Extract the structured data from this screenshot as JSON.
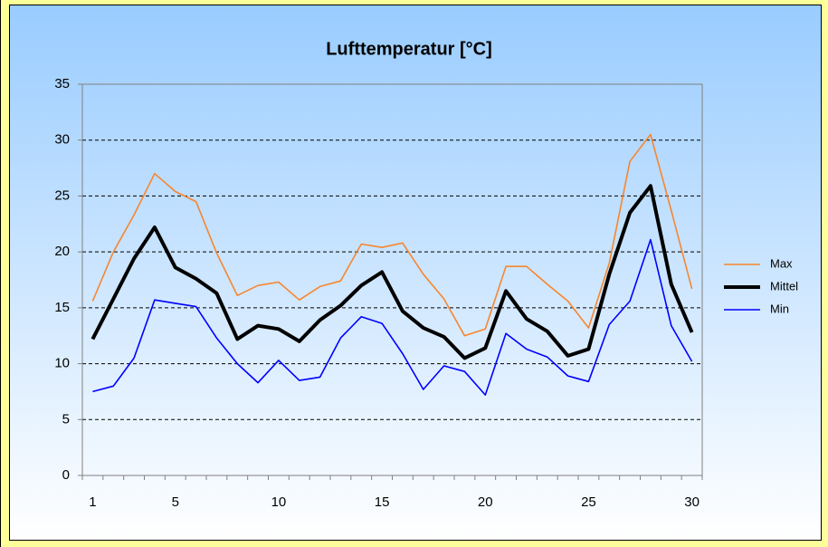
{
  "chart_data": {
    "type": "line",
    "title": "Lufttemperatur [°C]",
    "categories": [
      "1",
      null,
      null,
      null,
      "5",
      null,
      null,
      null,
      null,
      "10",
      null,
      null,
      null,
      null,
      "15",
      null,
      null,
      null,
      null,
      "20",
      null,
      null,
      null,
      null,
      "25",
      null,
      null,
      null,
      null,
      "30"
    ],
    "series": [
      {
        "name": "Max",
        "color": "#f7862f",
        "values": [
          15.6,
          20.0,
          23.3,
          27.0,
          25.4,
          24.5,
          19.9,
          16.1,
          17.0,
          17.3,
          15.7,
          16.9,
          17.4,
          20.7,
          20.4,
          20.8,
          18.0,
          15.8,
          12.5,
          13.1,
          18.7,
          18.7,
          17.1,
          15.6,
          13.2,
          19.0,
          28.1,
          30.5,
          23.7,
          16.7
        ]
      },
      {
        "name": "Mittel",
        "color": "#000000",
        "values": [
          12.2,
          15.8,
          19.4,
          22.2,
          18.6,
          17.6,
          16.3,
          12.2,
          13.4,
          13.1,
          12.0,
          13.9,
          15.2,
          17.0,
          18.2,
          14.7,
          13.2,
          12.4,
          10.5,
          11.4,
          16.5,
          14.0,
          12.9,
          10.7,
          11.3,
          18.0,
          23.5,
          25.9,
          17.1,
          12.8
        ]
      },
      {
        "name": "Min",
        "color": "#0000ff",
        "values": [
          7.5,
          8.0,
          10.5,
          15.7,
          15.4,
          15.1,
          12.3,
          10.0,
          8.3,
          10.3,
          8.5,
          8.8,
          12.3,
          14.2,
          13.6,
          10.9,
          7.7,
          9.8,
          9.3,
          7.2,
          12.7,
          11.3,
          10.6,
          8.9,
          8.4,
          13.5,
          15.6,
          21.1,
          13.4,
          10.2
        ]
      }
    ],
    "ylim": [
      0,
      35
    ],
    "yticks": [
      0,
      5,
      10,
      15,
      20,
      25,
      30,
      35
    ],
    "grid": true,
    "legend": "right"
  }
}
